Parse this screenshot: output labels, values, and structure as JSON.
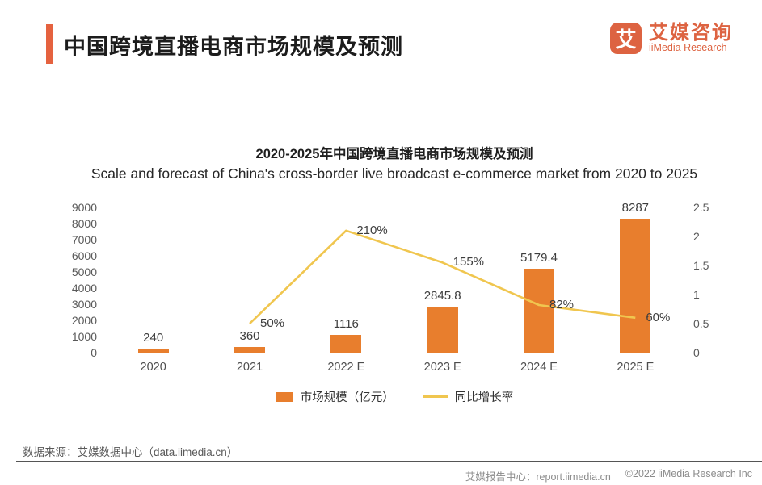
{
  "header": {
    "title": "中国跨境直播电商市场规模及预测",
    "logo": {
      "icon_char": "艾",
      "name_cn": "艾媒咨询",
      "name_en": "iiMedia Research",
      "brand_color": "#dd6341"
    }
  },
  "chart_data": {
    "type": "bar",
    "subtype": "combo-bar-line",
    "title": "2020-2025年中国跨境直播电商市场规模及预测",
    "subtitle": "Scale and forecast of China's cross-border live broadcast e-commerce market from 2020 to 2025",
    "categories": [
      "2020",
      "2021",
      "2022 E",
      "2023 E",
      "2024 E",
      "2025 E"
    ],
    "series": [
      {
        "name": "市场规模（亿元）",
        "type": "bar",
        "axis": "left",
        "values": [
          240,
          360,
          1116,
          2845.8,
          5179.4,
          8287
        ],
        "labels": [
          "240",
          "360",
          "1116",
          "2845.8",
          "5179.4",
          "8287"
        ],
        "color": "#e87e2d"
      },
      {
        "name": "同比增长率",
        "type": "line",
        "axis": "right",
        "values": [
          null,
          0.5,
          2.1,
          1.55,
          0.82,
          0.6
        ],
        "labels": [
          null,
          "50%",
          "210%",
          "155%",
          "82%",
          "60%"
        ],
        "color": "#f0c64f"
      }
    ],
    "left_axis": {
      "min": 0,
      "max": 9000,
      "step": 1000
    },
    "right_axis": {
      "min": 0,
      "max": 2.5,
      "step": 0.5
    },
    "grid": false,
    "legend_position": "bottom"
  },
  "footer": {
    "source": "数据来源：艾媒数据中心（data.iimedia.cn）",
    "report_center": "艾媒报告中心：report.iimedia.cn",
    "copyright": "©2022  iiMedia Research  Inc"
  }
}
